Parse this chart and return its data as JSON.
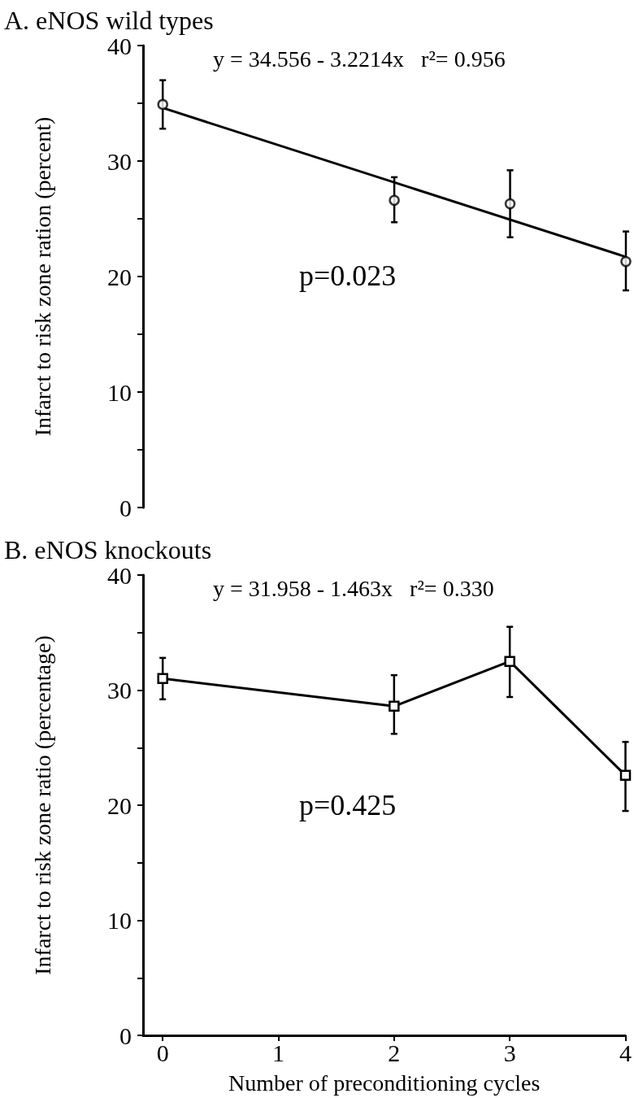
{
  "chart_data": [
    {
      "type": "scatter",
      "title": "A. eNOS wild types",
      "ylabel": "Infarct to risk zone ration (percent)",
      "annotations": [
        "y = 34.556 - 3.2214x   r²= 0.956",
        "p=0.023"
      ],
      "xlim": [
        -0.17,
        4
      ],
      "ylim": [
        0,
        40
      ],
      "yticks": [
        0,
        {
          "value": 5,
          "label": null
        },
        10,
        {
          "value": 15,
          "label": null
        },
        20,
        {
          "value": 25,
          "label": null
        },
        30,
        {
          "value": 35,
          "label": null
        },
        40
      ],
      "tick_labels": "y",
      "grid": false,
      "series": [
        {
          "color": "#000000",
          "marker": "circle",
          "x": [
            0,
            2,
            3,
            4
          ],
          "values": [
            34.9,
            26.6,
            26.3,
            21.3
          ],
          "errors": [
            [
              32.8,
              37.0
            ],
            [
              24.7,
              28.6
            ],
            [
              23.4,
              29.2
            ],
            [
              18.8,
              23.9
            ]
          ]
        },
        {
          "type": "line",
          "color": "#000000",
          "marker": "none",
          "line_style": "solid",
          "x": [
            0,
            4
          ],
          "values": [
            34.6,
            21.7
          ]
        }
      ]
    },
    {
      "type": "line",
      "title": "B. eNOS knockouts",
      "ylabel": "Infarct to risk zone ratio (percentage)",
      "xlabel": "Number of preconditioning cycles",
      "annotations": [
        "y = 31.958 - 1.463x   r²= 0.330",
        "p=0.425"
      ],
      "xlim": [
        -0.17,
        4
      ],
      "ylim": [
        0,
        40
      ],
      "xticks": [
        0,
        1,
        2,
        3,
        4
      ],
      "yticks": [
        0,
        {
          "value": 5,
          "label": null
        },
        10,
        {
          "value": 15,
          "label": null
        },
        20,
        {
          "value": 25,
          "label": null
        },
        30,
        {
          "value": 35,
          "label": null
        },
        40
      ],
      "grid": false,
      "series": [
        {
          "color": "#000000",
          "marker": "square",
          "line_style": "solid",
          "x": [
            0,
            2,
            3,
            4
          ],
          "values": [
            31.0,
            28.6,
            32.5,
            22.6
          ],
          "errors": [
            [
              29.2,
              32.8
            ],
            [
              26.2,
              31.3
            ],
            [
              29.4,
              35.5
            ],
            [
              19.5,
              25.5
            ]
          ]
        }
      ]
    }
  ]
}
